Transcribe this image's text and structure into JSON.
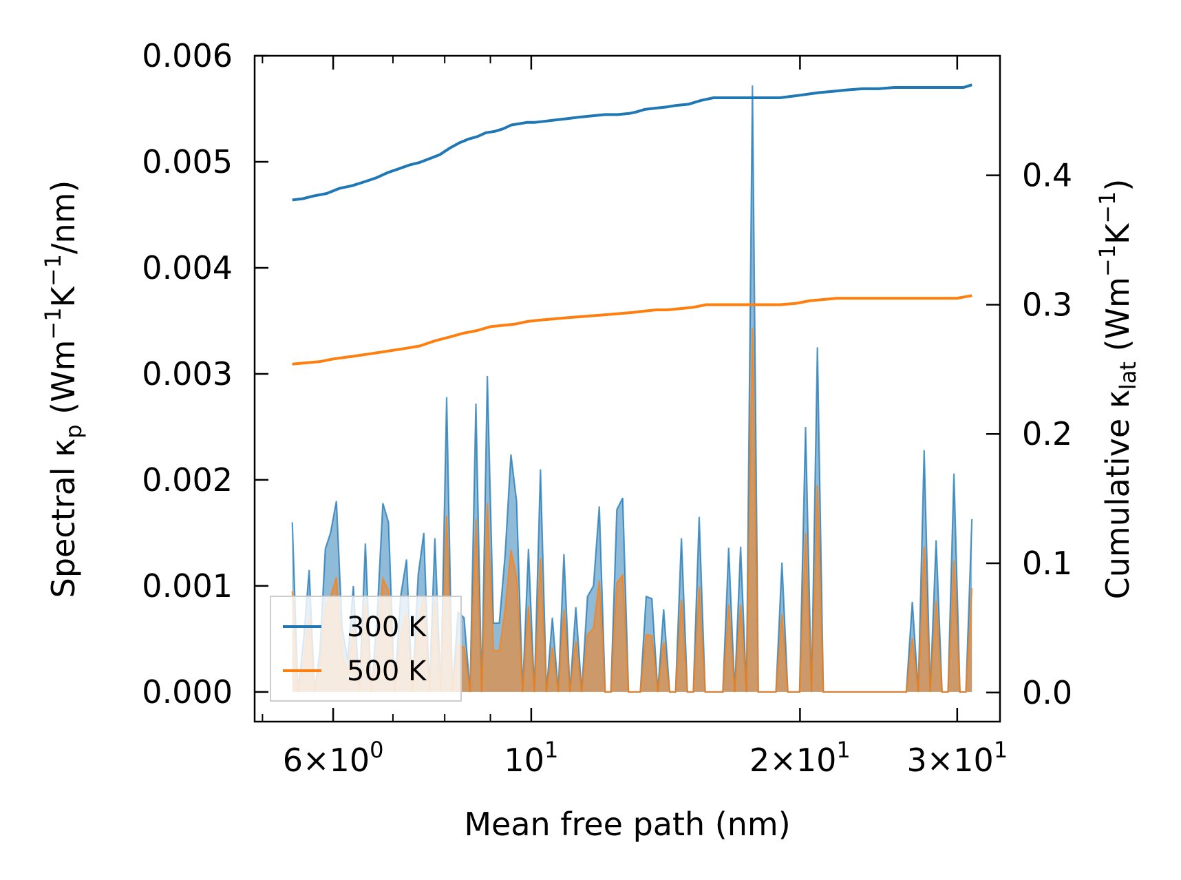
{
  "chart_data": {
    "type": "line",
    "title": "",
    "xlabel": "Mean free path (nm)",
    "ylabel_left": {
      "main": "Spectral κ",
      "sub": "p",
      "unit_open": " (Wm",
      "exp1": "−1",
      "mid": "K",
      "exp2": "−1",
      "unit_close": "/nm)"
    },
    "ylabel_right": {
      "main": "Cumulative κ",
      "sub": "lat",
      "unit_open": " (Wm",
      "exp1": "−1",
      "mid": "K",
      "exp2": "−1",
      "unit_close": ")"
    },
    "xscale": "log",
    "xlim": [
      4.9,
      33.5
    ],
    "ylim_left": [
      -0.00028,
      0.006
    ],
    "ylim_right": [
      -0.0225,
      0.4925
    ],
    "x_ticks": [
      {
        "value": 6,
        "mant": "6",
        "exp": "0"
      },
      {
        "value": 10,
        "mant": "",
        "exp": "1"
      },
      {
        "value": 20,
        "mant": "2",
        "exp": "1"
      },
      {
        "value": 30,
        "mant": "3",
        "exp": "1"
      }
    ],
    "x_minor_ticks": [
      5,
      7,
      8,
      9,
      40
    ],
    "y_left_ticks": [
      "0.000",
      "0.001",
      "0.002",
      "0.003",
      "0.004",
      "0.005",
      "0.006"
    ],
    "y_left_tick_values": [
      0,
      0.001,
      0.002,
      0.003,
      0.004,
      0.005,
      0.006
    ],
    "y_right_ticks": [
      "0.0",
      "0.1",
      "0.2",
      "0.3",
      "0.4"
    ],
    "y_right_tick_values": [
      0,
      0.1,
      0.2,
      0.3,
      0.4
    ],
    "legend": {
      "position": "lower-left",
      "entries": [
        "300 K",
        "500 K"
      ]
    },
    "colors": {
      "300 K": "#1f77b4",
      "500 K": "#ff7f0e"
    },
    "spectral_x": [
      5.4,
      5.48,
      5.56,
      5.64,
      5.72,
      5.8,
      5.88,
      5.96,
      6.05,
      6.14,
      6.23,
      6.32,
      6.42,
      6.52,
      6.62,
      6.72,
      6.82,
      6.92,
      7.03,
      7.14,
      7.25,
      7.36,
      7.47,
      7.58,
      7.69,
      7.8,
      7.92,
      8.04,
      8.16,
      8.28,
      8.41,
      8.54,
      8.67,
      8.8,
      8.93,
      9.07,
      9.21,
      9.35,
      9.49,
      9.63,
      9.78,
      9.93,
      10.08,
      10.24,
      10.4,
      10.56,
      10.72,
      10.88,
      11.05,
      11.22,
      11.39,
      11.56,
      11.74,
      11.92,
      12.1,
      12.28,
      12.47,
      12.66,
      12.85,
      13.05,
      13.25,
      13.45,
      13.65,
      13.86,
      14.07,
      14.29,
      14.51,
      14.73,
      14.96,
      15.19,
      15.42,
      15.66,
      15.9,
      16.14,
      16.39,
      16.64,
      16.9,
      17.16,
      17.42,
      17.69,
      17.96,
      18.24,
      18.52,
      18.8,
      19.09,
      19.38,
      19.68,
      19.98,
      20.29,
      20.6,
      20.92,
      21.24,
      21.56,
      21.89,
      22.23,
      22.57,
      22.92,
      23.27,
      23.63,
      24.0,
      24.37,
      24.75,
      25.13,
      25.52,
      25.91,
      26.31,
      26.72,
      27.13,
      27.55,
      27.98,
      28.41,
      28.85,
      29.3,
      29.75,
      30.21,
      30.68,
      31.16
    ],
    "series": [
      {
        "name": "300 K",
        "spectral": [
          0.0016,
          0.0,
          0.0005,
          0.00115,
          0.0,
          0.0004,
          0.00135,
          0.0015,
          0.0018,
          0.0006,
          0.0003,
          0.001,
          0.0,
          0.0014,
          0.0,
          0.0007,
          0.00178,
          0.0016,
          0.0,
          0.0009,
          0.00125,
          0.0,
          0.0011,
          0.0015,
          0.0,
          0.00145,
          0.0,
          0.00278,
          0.0,
          0.00075,
          0.0007,
          0.0,
          0.00272,
          0.0,
          0.00298,
          0.00065,
          0.00065,
          0.0013,
          0.00224,
          0.0018,
          0.0,
          0.00135,
          0.0,
          0.0021,
          0.0,
          0.0007,
          0.0,
          0.0013,
          0.0,
          0.0008,
          0.0,
          0.0009,
          0.001,
          0.00175,
          0.0,
          0.0,
          0.00172,
          0.00183,
          0.0,
          0.0,
          0.0,
          0.0009,
          0.00088,
          0.0,
          0.00078,
          0.0,
          0.0,
          0.00145,
          0.0,
          0.0,
          0.00165,
          0.0,
          0.0,
          0.0,
          0.0,
          0.00136,
          0.0,
          0.00137,
          0.0,
          0.00572,
          0.0,
          0.0,
          0.0,
          0.0,
          0.00122,
          0.0,
          0.0,
          0.0,
          0.0025,
          0.0,
          0.00325,
          0.0,
          0.0,
          0.0,
          0.0,
          0.0,
          0.0,
          0.0,
          0.0,
          0.0,
          0.0,
          0.0,
          0.0,
          0.0,
          0.0,
          0.0,
          0.00085,
          0.0,
          0.00228,
          0.0,
          0.00143,
          0.0,
          0.0,
          0.00206,
          0.0,
          0.0,
          0.00163
        ],
        "cumulative_x": [
          5.4,
          5.55,
          5.7,
          5.9,
          6.1,
          6.3,
          6.5,
          6.7,
          6.9,
          7.1,
          7.3,
          7.5,
          7.7,
          7.9,
          8.1,
          8.3,
          8.5,
          8.7,
          8.9,
          9.1,
          9.3,
          9.5,
          9.7,
          9.9,
          10.1,
          10.4,
          10.7,
          11.0,
          11.3,
          11.7,
          12.1,
          12.5,
          12.9,
          13.1,
          13.4,
          13.8,
          14.2,
          14.5,
          15.0,
          15.5,
          16.0,
          16.6,
          17.2,
          17.8,
          18.4,
          19.0,
          19.5,
          20.0,
          20.5,
          21.0,
          21.8,
          22.5,
          23.5,
          24.5,
          25.5,
          26.5,
          27.5,
          28.5,
          29.5,
          30.5,
          31.16
        ],
        "cumulative": [
          0.381,
          0.382,
          0.384,
          0.386,
          0.39,
          0.392,
          0.395,
          0.398,
          0.402,
          0.405,
          0.408,
          0.41,
          0.413,
          0.416,
          0.421,
          0.425,
          0.428,
          0.43,
          0.433,
          0.434,
          0.436,
          0.439,
          0.44,
          0.441,
          0.441,
          0.442,
          0.443,
          0.444,
          0.445,
          0.446,
          0.447,
          0.447,
          0.448,
          0.449,
          0.451,
          0.452,
          0.453,
          0.454,
          0.455,
          0.458,
          0.46,
          0.46,
          0.46,
          0.46,
          0.46,
          0.46,
          0.461,
          0.462,
          0.463,
          0.464,
          0.465,
          0.466,
          0.467,
          0.467,
          0.468,
          0.468,
          0.468,
          0.468,
          0.468,
          0.468,
          0.47
        ]
      },
      {
        "name": "500 K",
        "spectral": [
          0.00095,
          0.0,
          0.0003,
          0.0007,
          0.0,
          0.00025,
          0.0008,
          0.0009,
          0.00108,
          0.00036,
          0.00018,
          0.0006,
          0.0,
          0.00085,
          0.0,
          0.00042,
          0.00107,
          0.00096,
          0.0,
          0.00054,
          0.00075,
          0.0,
          0.00066,
          0.0009,
          0.0,
          0.00087,
          0.0,
          0.00166,
          0.0,
          0.00045,
          0.00042,
          0.0,
          0.00163,
          0.0,
          0.00178,
          0.00039,
          0.00039,
          0.00078,
          0.00134,
          0.00108,
          0.0,
          0.00081,
          0.0,
          0.00126,
          0.0,
          0.00042,
          0.0,
          0.00078,
          0.0,
          0.00048,
          0.0,
          0.00054,
          0.0006,
          0.00105,
          0.0,
          0.0,
          0.00103,
          0.0011,
          0.0,
          0.0,
          0.0,
          0.00054,
          0.00053,
          0.0,
          0.00047,
          0.0,
          0.0,
          0.00087,
          0.0,
          0.0,
          0.00099,
          0.0,
          0.0,
          0.0,
          0.0,
          0.00082,
          0.0,
          0.00082,
          0.0,
          0.00343,
          0.0,
          0.0,
          0.0,
          0.0,
          0.00073,
          0.0,
          0.0,
          0.0,
          0.0015,
          0.0,
          0.00195,
          0.0,
          0.0,
          0.0,
          0.0,
          0.0,
          0.0,
          0.0,
          0.0,
          0.0,
          0.0,
          0.0,
          0.0,
          0.0,
          0.0,
          0.0,
          0.00051,
          0.0,
          0.00137,
          0.0,
          0.00086,
          0.0,
          0.0,
          0.00124,
          0.0,
          0.0,
          0.00098
        ],
        "cumulative_x": [
          5.4,
          5.6,
          5.8,
          6.0,
          6.3,
          6.6,
          6.9,
          7.2,
          7.5,
          7.8,
          8.1,
          8.4,
          8.7,
          9.0,
          9.3,
          9.6,
          9.9,
          10.2,
          10.6,
          11.0,
          11.5,
          12.0,
          12.5,
          13.0,
          13.4,
          13.8,
          14.2,
          14.7,
          15.2,
          15.7,
          16.2,
          16.8,
          17.5,
          18.2,
          19.0,
          19.8,
          20.5,
          21.3,
          22.0,
          23.0,
          24.0,
          25.0,
          26.0,
          27.0,
          28.0,
          29.0,
          30.0,
          31.16
        ],
        "cumulative": [
          0.254,
          0.255,
          0.256,
          0.258,
          0.26,
          0.262,
          0.264,
          0.266,
          0.268,
          0.272,
          0.275,
          0.278,
          0.28,
          0.283,
          0.284,
          0.285,
          0.287,
          0.288,
          0.289,
          0.29,
          0.291,
          0.292,
          0.293,
          0.294,
          0.295,
          0.296,
          0.296,
          0.297,
          0.298,
          0.3,
          0.3,
          0.3,
          0.3,
          0.3,
          0.3,
          0.301,
          0.303,
          0.304,
          0.305,
          0.305,
          0.305,
          0.305,
          0.305,
          0.305,
          0.305,
          0.305,
          0.305,
          0.307
        ]
      }
    ]
  }
}
